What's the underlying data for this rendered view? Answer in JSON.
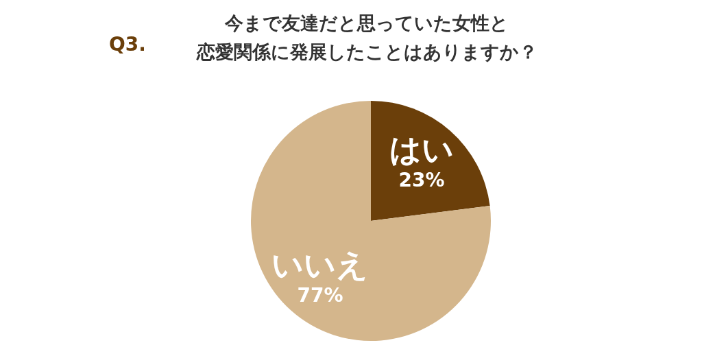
{
  "chart_data": {
    "type": "pie",
    "title": "今まで友達だと思っていた女性と恋愛関係に発展したことはありますか？",
    "categories": [
      "はい",
      "いいえ"
    ],
    "values": [
      23,
      77
    ],
    "colors": [
      "#6b3f0a",
      "#d4b68c"
    ],
    "value_labels": [
      "23%",
      "77%"
    ],
    "annotations": [
      "Q3."
    ]
  }
}
